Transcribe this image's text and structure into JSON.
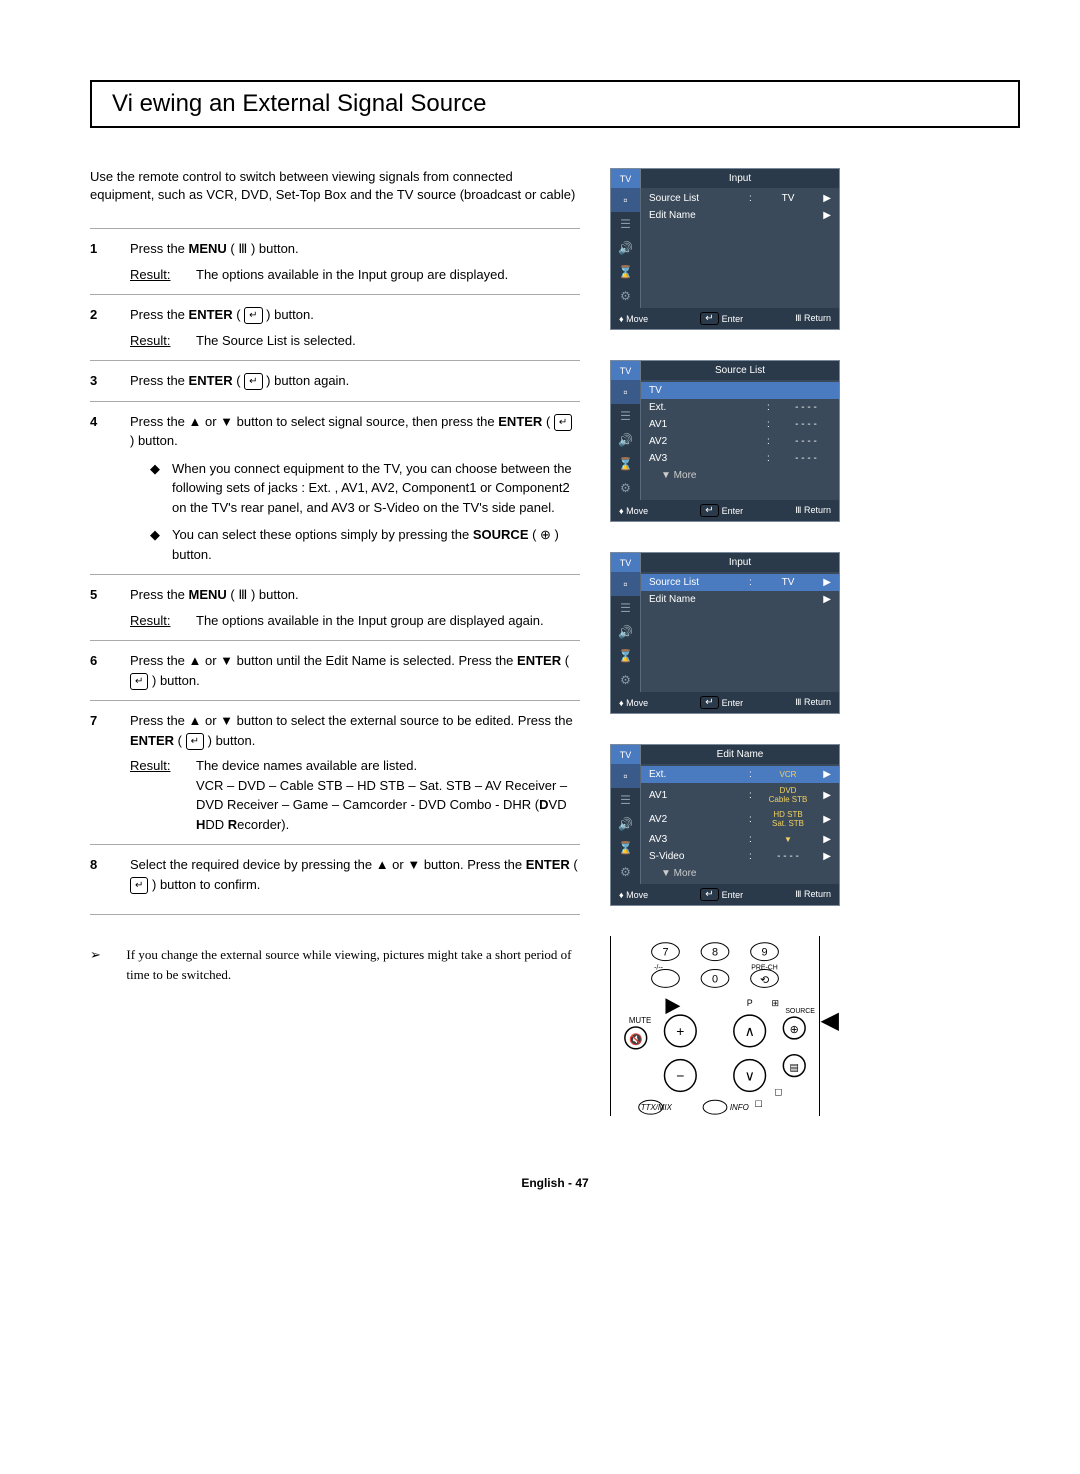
{
  "title": "Vi ewing an External Signal Source",
  "intro": "Use the remote control to switch between viewing signals from connected equipment, such as VCR, DVD, Set-Top Box and the TV source (broadcast or cable)",
  "steps": [
    {
      "num": "1",
      "text": "Press the ",
      "bold1": "MENU",
      "after1": " ( Ⅲ )  button.",
      "result_label": "Result:",
      "result_text": "The options available in the Input  group are displayed."
    },
    {
      "num": "2",
      "text": "Press the ",
      "bold1": "ENTER",
      "after1": " ( ↵ ) button.",
      "result_label": "Result:",
      "result_text": "The Source List  is selected."
    },
    {
      "num": "3",
      "text": "Press the ",
      "bold1": "ENTER",
      "after1": " ( ↵ ) button again."
    },
    {
      "num": "4",
      "text": "Press the  ▲  or  ▼  button to select signal source, then press the ",
      "bold1": "ENTER",
      "after1": " ( ↵ ) button.",
      "notes": [
        "When you connect equipment to the TV, you can choose between the following sets of jacks : Ext.  , AV1, AV2, Component1  or Component2  on the TV's rear panel, and AV3 or S-Video  on the TV's side panel.",
        "You can select these options simply by pressing the SOURCE ( ⊕ ) button."
      ],
      "note_source_bold": "SOURCE"
    },
    {
      "num": "5",
      "text": "Press the ",
      "bold1": "MENU",
      "after1": " ( Ⅲ )  button.",
      "result_label": "Result:",
      "result_text": "The options available in the Input  group are displayed again."
    },
    {
      "num": "6",
      "text": "Press the  ▲  or  ▼  button until the Edit Name  is selected. Press the ",
      "bold1": "ENTER",
      "after1": " ( ↵ ) button."
    },
    {
      "num": "7",
      "text": "Press the  ▲  or  ▼  button to select the external source to be edited. Press the ",
      "bold1": "ENTER",
      "after1": " ( ↵ ) button.",
      "result_label": "Result:",
      "result_text": "The device names available are listed.",
      "result_list": "VCR – DVD – Cable STB  – HD STB – Sat. STB  – AV Receiver  – DVD Receiver  – Game – Camcorder - DVD Combo - DHR  (DVD HDD Recorder)."
    },
    {
      "num": "8",
      "text": "Select the required device by pressing the  ▲  or  ▼  button. Press the ",
      "bold1": "ENTER",
      "after1": " ( ↵ ) button to confirm."
    }
  ],
  "footnote": "If you change the external source while viewing, pictures might take a short period of time to be switched.",
  "page_label": "English - 47",
  "osd": {
    "move": "Move",
    "enter": "Enter",
    "return": "Return",
    "tv": "TV",
    "menu1": {
      "title": "Input",
      "rows": [
        {
          "label": "Source List",
          "colon": ":",
          "val": "TV",
          "arrow": "▶"
        },
        {
          "label": "Edit Name",
          "colon": "",
          "val": "",
          "arrow": "▶"
        }
      ]
    },
    "menu2": {
      "title": "Source List",
      "rows": [
        {
          "label": "TV",
          "hl": true
        },
        {
          "label": "Ext.",
          "colon": ":",
          "val": "- - - -"
        },
        {
          "label": "AV1",
          "colon": ":",
          "val": "- - - -"
        },
        {
          "label": "AV2",
          "colon": ":",
          "val": "- - - -"
        },
        {
          "label": "AV3",
          "colon": ":",
          "val": "- - - -"
        },
        {
          "label": "▼ More",
          "sub": true
        }
      ]
    },
    "menu3": {
      "title": "Input",
      "rows": [
        {
          "label": "Source List",
          "colon": ":",
          "val": "TV",
          "arrow": "▶",
          "hl": true
        },
        {
          "label": "Edit Name",
          "colon": "",
          "val": "",
          "arrow": "▶"
        }
      ]
    },
    "menu4": {
      "title": "Edit Name",
      "rows": [
        {
          "label": "Ext.",
          "colon": ":",
          "val": "- - - -",
          "arrow": "▶",
          "hl": true,
          "sub_vals": [
            "VCR"
          ]
        },
        {
          "label": "AV1",
          "colon": ":",
          "arrow": "▶",
          "sub_vals": [
            "DVD",
            "Cable STB"
          ]
        },
        {
          "label": "AV2",
          "colon": ":",
          "arrow": "▶",
          "sub_vals": [
            "HD STB",
            "Sat. STB"
          ]
        },
        {
          "label": "AV3",
          "colon": ":",
          "arrow": "▶",
          "sub_vals": [
            "▼"
          ]
        },
        {
          "label": "S-Video",
          "colon": ":",
          "val": "- - - -",
          "arrow": "▶"
        },
        {
          "label": "▼ More",
          "sub": true
        }
      ]
    }
  },
  "remote": {
    "labels": {
      "mute": "MUTE",
      "source": "SOURCE",
      "prech": "PRE-CH",
      "ttx": "TTX/MIX",
      "info": "INFO",
      "p": "P",
      "dash": "-/--"
    },
    "nums": [
      "7",
      "8",
      "9",
      "0"
    ]
  },
  "colors": {
    "osd_bg": "#3a4a5a",
    "osd_dark": "#2a3a4a",
    "osd_hl": "#4a7ac0",
    "osd_border": "#7a8a9a"
  }
}
